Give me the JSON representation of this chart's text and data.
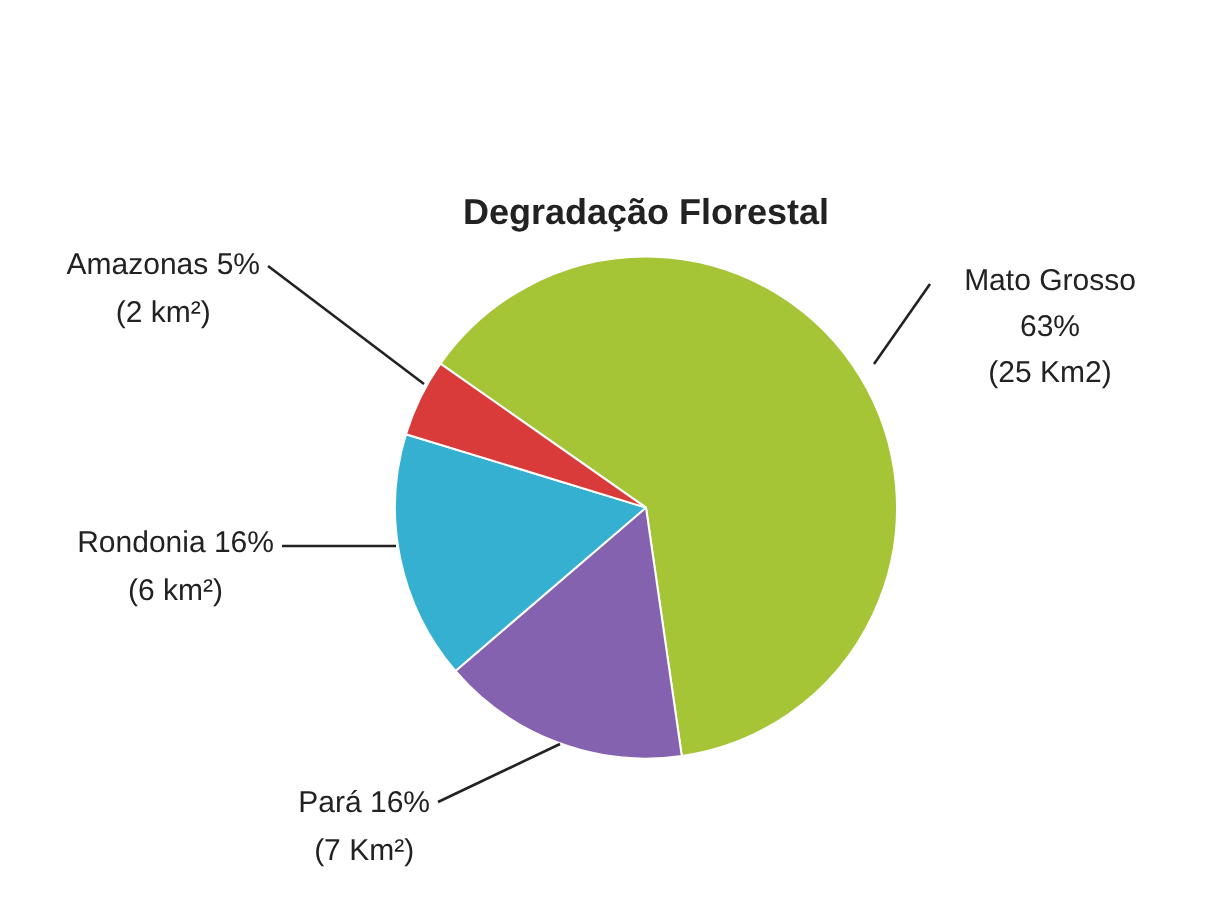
{
  "chart_data": {
    "type": "pie",
    "title": "Degradação Florestal",
    "categories": [
      "Mato Grosso",
      "Pará",
      "Rondonia",
      "Amazonas"
    ],
    "values": [
      63,
      16,
      16,
      5
    ],
    "colors": [
      "#a5c436",
      "#8462b0",
      "#36b0d0",
      "#d93a3a"
    ],
    "value_labels": [
      "63%\n(25 Km2)",
      "16%\n(7 Km²)",
      "16%\n(6 km²)",
      "5%\n(2 km²)"
    ],
    "legend": false
  }
}
